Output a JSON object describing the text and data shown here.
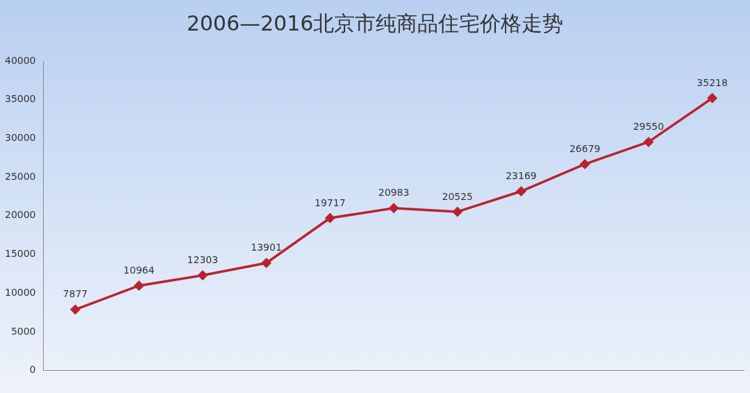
{
  "chart_data": {
    "type": "line",
    "title": "2006—2016北京市纯商品住宅价格走势",
    "categories": [
      null,
      null,
      null,
      null,
      null,
      null,
      null,
      null,
      null,
      null,
      null
    ],
    "series": [
      {
        "color": "#b8232f",
        "values": [
          7877,
          10964,
          12303,
          13901,
          19717,
          20983,
          20525,
          23169,
          26679,
          29550,
          35218
        ]
      }
    ],
    "ylim": [
      0,
      40000
    ],
    "yticks": [
      0,
      5000,
      10000,
      15000,
      20000,
      25000,
      30000,
      35000,
      40000
    ],
    "grid": false,
    "legend": false,
    "marker": "diamond",
    "line_style": "solid",
    "data_labels": true
  }
}
